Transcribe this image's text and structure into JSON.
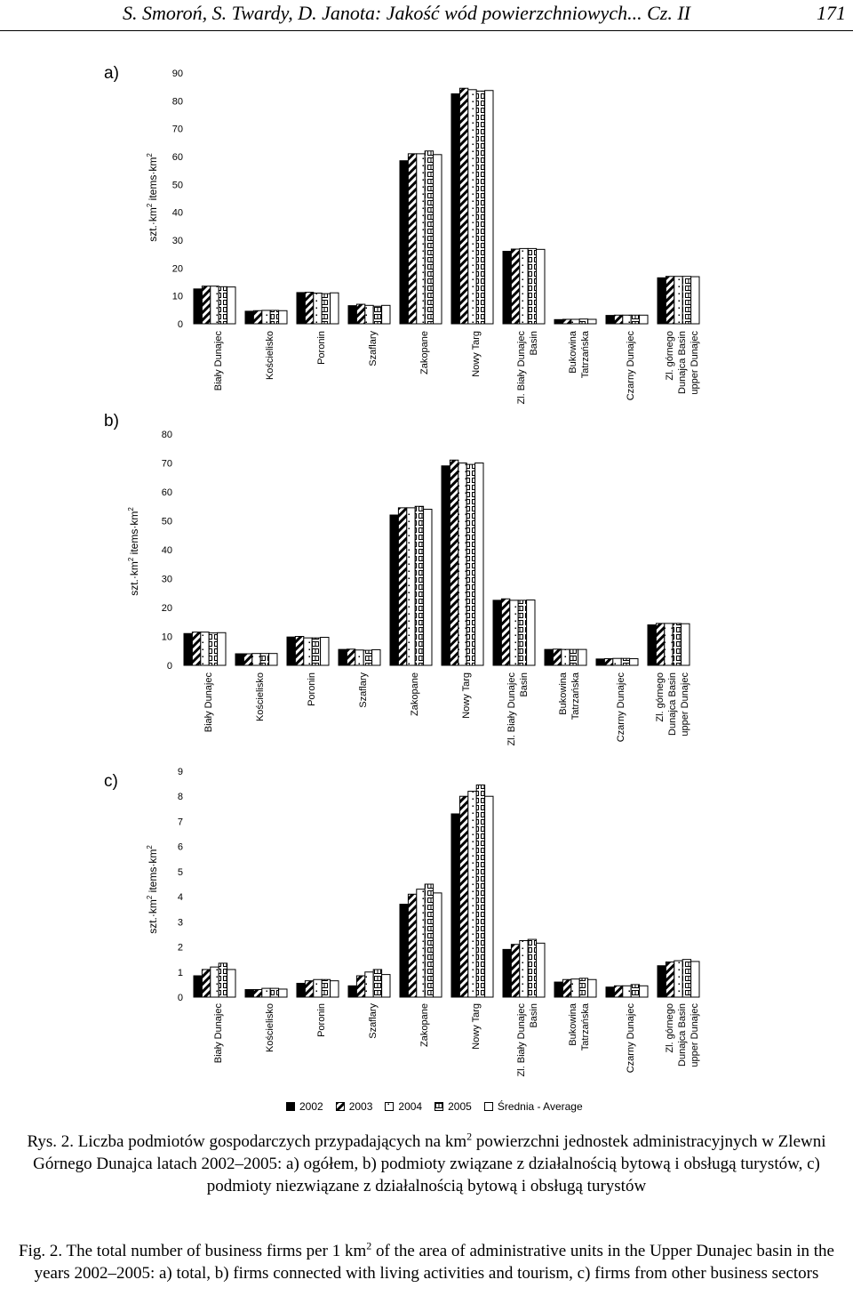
{
  "header": {
    "title": "S. Smoroń, S. Twardy, D. Janota: Jakość wód powierzchniowych... Cz. II",
    "page": "171"
  },
  "legend": {
    "items": [
      {
        "label": "2002",
        "color": "#000000"
      },
      {
        "label": "2003",
        "color": "#ffffff"
      },
      {
        "label": "2004",
        "color": "#ffffff"
      },
      {
        "label": "2005",
        "color": "#ffffff"
      },
      {
        "label": "Średnia - Average",
        "color": "#ffffff"
      }
    ]
  },
  "chart_data": [
    {
      "panel_label": "a)",
      "type": "bar",
      "ylabel_parts": [
        "szt.·km",
        "2",
        " items·km",
        "2"
      ],
      "ylim": [
        0,
        90
      ],
      "yticks": [
        0,
        10,
        20,
        30,
        40,
        50,
        60,
        70,
        80,
        90
      ],
      "categories": [
        [
          "Biały Dunajec"
        ],
        [
          "Kościelisko"
        ],
        [
          "Poronin"
        ],
        [
          "Szaflary"
        ],
        [
          "Zakopane"
        ],
        [
          "Nowy Targ"
        ],
        [
          "Zl. Biały Dunajec",
          "Basin"
        ],
        [
          "Bukowina",
          "Tatrzańska"
        ],
        [
          "Czarny Dunajec"
        ],
        [
          "Zl. górnego",
          "Dunajca Basin",
          "upper Dunajec"
        ]
      ],
      "series": [
        {
          "name": "2002",
          "values": [
            12.5,
            4.5,
            11.2,
            6.5,
            58.5,
            82.5,
            26,
            1.5,
            3,
            16.5
          ]
        },
        {
          "name": "2003",
          "values": [
            13.5,
            4.7,
            11.3,
            7,
            61,
            84.5,
            26.8,
            1.6,
            3.1,
            17
          ]
        },
        {
          "name": "2004",
          "values": [
            13.5,
            4.8,
            11,
            6.6,
            61,
            84,
            27,
            1.6,
            3.1,
            17
          ]
        },
        {
          "name": "2005",
          "values": [
            13.3,
            4.8,
            10.8,
            6.3,
            62,
            83.5,
            27,
            1.7,
            3.1,
            17
          ]
        },
        {
          "name": "Średnia - Average",
          "values": [
            13.2,
            4.7,
            11.1,
            6.6,
            60.7,
            83.7,
            26.7,
            1.6,
            3.1,
            16.9
          ]
        }
      ]
    },
    {
      "panel_label": "b)",
      "type": "bar",
      "ylabel_parts": [
        "szt.·km",
        "2",
        " items·km",
        "2"
      ],
      "ylim": [
        0,
        80
      ],
      "yticks": [
        0,
        10,
        20,
        30,
        40,
        50,
        60,
        70,
        80
      ],
      "categories": [
        [
          "Biały Dunajec"
        ],
        [
          "Kościelisko"
        ],
        [
          "Poronin"
        ],
        [
          "Szaflary"
        ],
        [
          "Zakopane"
        ],
        [
          "Nowy Targ"
        ],
        [
          "Zl. Biały Dunajec",
          "Basin"
        ],
        [
          "Bukowina",
          "Tatrzańska"
        ],
        [
          "Czarny Dunajec"
        ],
        [
          "Zl. górnego",
          "Dunajca Basin",
          "upper Dunajec"
        ]
      ],
      "series": [
        {
          "name": "2002",
          "values": [
            11,
            4,
            9.8,
            5.5,
            52,
            69,
            22.5,
            5.5,
            2.2,
            14
          ]
        },
        {
          "name": "2003",
          "values": [
            11.5,
            4,
            10,
            5.6,
            54.5,
            71,
            23,
            5.6,
            2.3,
            14.5
          ]
        },
        {
          "name": "2004",
          "values": [
            11.5,
            4.1,
            9.5,
            5.3,
            54.5,
            70,
            22.5,
            5.5,
            2.4,
            14.5
          ]
        },
        {
          "name": "2005",
          "values": [
            11.2,
            4.1,
            9.5,
            5.2,
            55,
            69.5,
            22.5,
            5.5,
            2.4,
            14.5
          ]
        },
        {
          "name": "Średnia - Average",
          "values": [
            11.3,
            4.1,
            9.7,
            5.4,
            54,
            70,
            22.6,
            5.5,
            2.3,
            14.4
          ]
        }
      ]
    },
    {
      "panel_label": "c)",
      "type": "bar",
      "ylabel_parts": [
        "szt.·km",
        "2",
        " items·km",
        "2"
      ],
      "ylim": [
        0,
        9
      ],
      "yticks": [
        0,
        1,
        2,
        3,
        4,
        5,
        6,
        7,
        8,
        9
      ],
      "categories": [
        [
          "Biały Dunajec"
        ],
        [
          "Kościelisko"
        ],
        [
          "Poronin"
        ],
        [
          "Szaflary"
        ],
        [
          "Zakopane"
        ],
        [
          "Nowy Targ"
        ],
        [
          "Zl. Biały Dunajec",
          "Basin"
        ],
        [
          "Bukowina",
          "Tatrzańska"
        ],
        [
          "Czarny Dunajec"
        ],
        [
          "Zl. górnego",
          "Dunajca Basin",
          "upper Dunajec"
        ]
      ],
      "series": [
        {
          "name": "2002",
          "values": [
            0.85,
            0.3,
            0.55,
            0.45,
            3.7,
            7.3,
            1.9,
            0.6,
            0.4,
            1.25
          ]
        },
        {
          "name": "2003",
          "values": [
            1.1,
            0.3,
            0.65,
            0.85,
            4.1,
            8,
            2.1,
            0.7,
            0.45,
            1.4
          ]
        },
        {
          "name": "2004",
          "values": [
            1.2,
            0.35,
            0.7,
            1,
            4.3,
            8.2,
            2.25,
            0.72,
            0.45,
            1.45
          ]
        },
        {
          "name": "2005",
          "values": [
            1.35,
            0.35,
            0.7,
            1.1,
            4.5,
            8.45,
            2.3,
            0.75,
            0.5,
            1.5
          ]
        },
        {
          "name": "Średnia - Average",
          "values": [
            1.1,
            0.32,
            0.65,
            0.9,
            4.15,
            8,
            2.15,
            0.7,
            0.45,
            1.42
          ]
        }
      ]
    }
  ],
  "caption_pl": {
    "pre": "Rys. 2. Liczba podmiotów gospodarczych przypadających na km",
    "sup": "2",
    "post": " powierzchni jednostek administracyjnych w Zlewni Górnego Dunajca latach 2002–2005: a) ogółem, b) podmioty związane z działalnością bytową i obsługą turystów, c) podmioty niezwiązane z działalnością bytową i obsługą turystów"
  },
  "caption_en": {
    "pre": "Fig. 2. The total number of business firms per 1 km",
    "sup": "2",
    "post": " of the area of administrative units in the Upper Dunajec basin in the years 2002–2005: a) total, b) firms connected with living activities and tourism, c) firms from other business sectors"
  }
}
